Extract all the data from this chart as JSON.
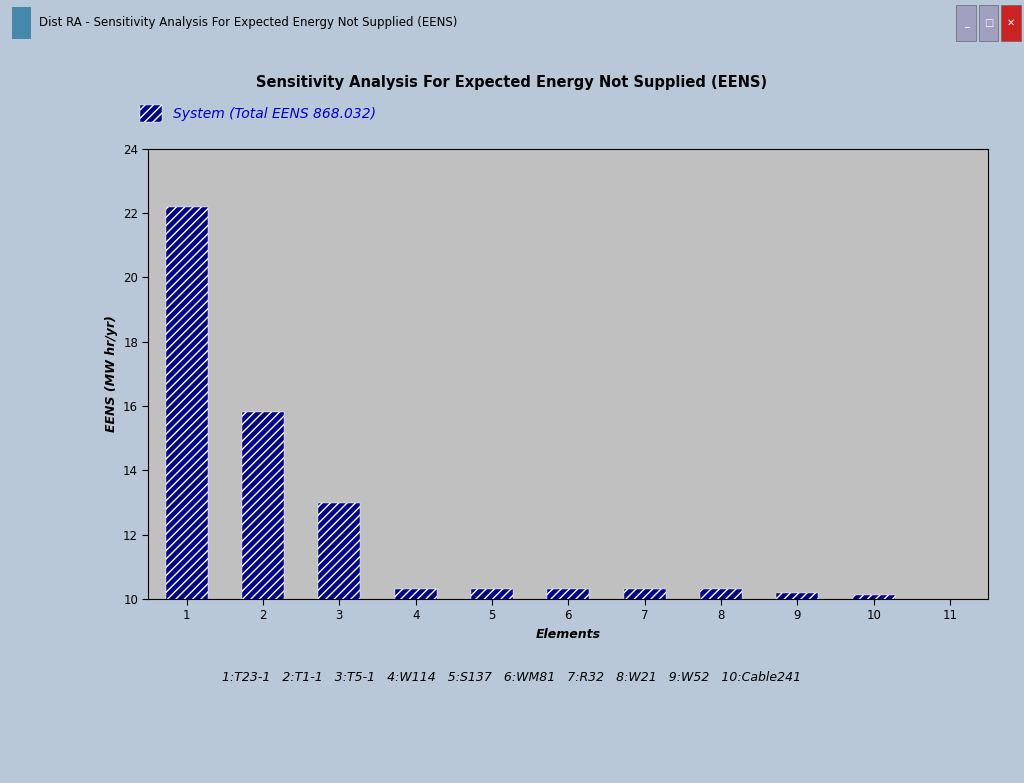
{
  "title": "Sensitivity Analysis For Expected Energy Not Supplied (EENS)",
  "xlabel": "Elements",
  "ylabel": "EENS (MW hr/yr)",
  "legend_label": "System (Total EENS 868.032)",
  "bar_values": [
    22.2,
    15.8,
    13.0,
    10.32,
    10.32,
    10.32,
    10.32,
    10.32,
    10.18,
    10.12
  ],
  "x_positions": [
    1,
    2,
    3,
    4,
    5,
    6,
    7,
    8,
    9,
    10
  ],
  "xlim": [
    0.5,
    11.5
  ],
  "ylim": [
    10.0,
    24.0
  ],
  "yticks": [
    10,
    12,
    14,
    16,
    18,
    20,
    22,
    24
  ],
  "xticks": [
    1,
    2,
    3,
    4,
    5,
    6,
    7,
    8,
    9,
    10,
    11
  ],
  "bar_color": "#00008B",
  "hatch_pattern": "////",
  "bar_width": 0.55,
  "element_labels": "1:T23-1   2:T1-1   3:T5-1   4:W114   5:S137   6:WM81   7:R32   8:W21   9:W52   10:Cable241",
  "plot_bg": "#C0C0C0",
  "white_bg": "#FFFFFF",
  "titlebar_bg": "#AEC6E8",
  "green_color": "#2E8B22",
  "title_fontsize": 10.5,
  "axis_fontsize": 9,
  "tick_fontsize": 8.5,
  "legend_text_color": "#0000CD",
  "window_title": "Dist RA - Sensitivity Analysis For Expected Energy Not Supplied (EENS)"
}
